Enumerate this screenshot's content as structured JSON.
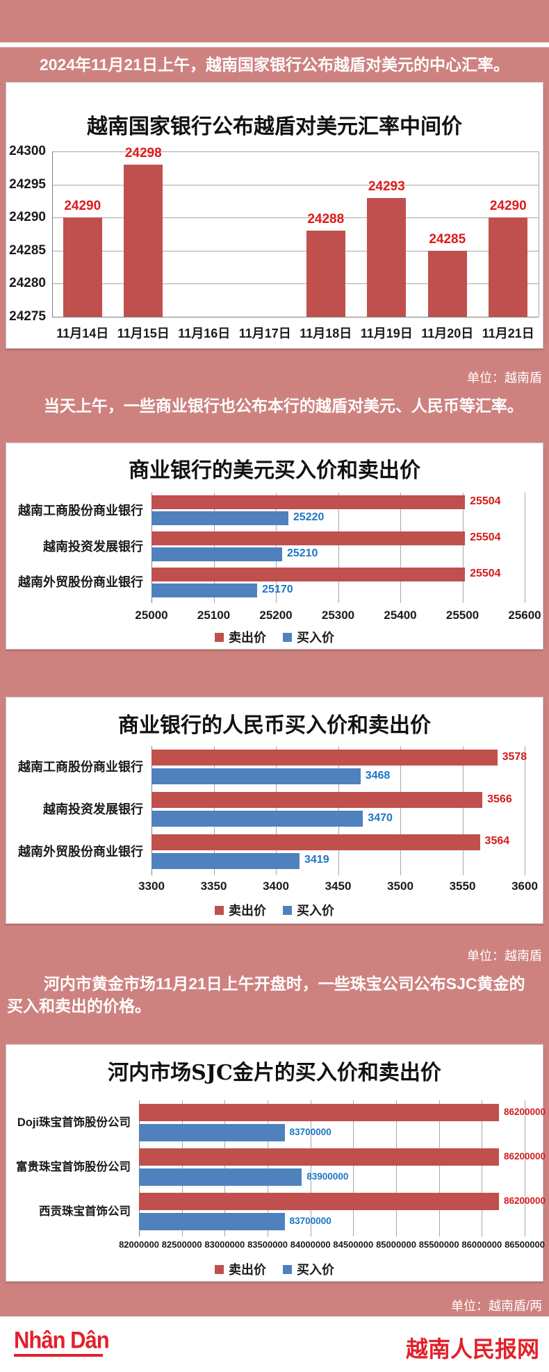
{
  "page": {
    "background_color": "#ce827f",
    "accent_red": "#e3202a",
    "intro_paragraph_1": "2024年11月21日上午，越南国家银行公布越盾对美元的中心汇率。",
    "intro_paragraph_2": "当天上午，一些商业银行也公布本行的越盾对美元、人民币等汇率。",
    "intro_paragraph_3": "河内市黄金市场11月21日上午开盘时，一些珠宝公司公布SJC黄金的买入和卖出的价格。",
    "unit_note_1": "单位：越南盾",
    "unit_note_2": "单位：越南盾",
    "unit_note_3": "单位：越南盾/两",
    "footer": {
      "logo_text": "Nhân Dân",
      "site_name": "越南人民报网"
    }
  },
  "chart_data": [
    {
      "type": "bar",
      "title": "越南国家银行公布越盾对美元汇率中间价",
      "categories": [
        "11月14日",
        "11月15日",
        "11月16日",
        "11月17日",
        "11月18日",
        "11月19日",
        "11月20日",
        "11月21日"
      ],
      "values": [
        24290,
        24298,
        null,
        null,
        24288,
        24293,
        24285,
        24290
      ],
      "ylim": [
        24275,
        24300
      ],
      "yticks": [
        24275,
        24280,
        24285,
        24290,
        24295,
        24300
      ],
      "bar_color": "#c0504d",
      "value_label_color": "#e01a1a",
      "grid": true,
      "legend_position": "none"
    },
    {
      "type": "bar-horizontal",
      "title": "商业银行的美元买入价和卖出价",
      "categories": [
        "越南工商股份商业银行",
        "越南投资发展银行",
        "越南外贸股份商业银行"
      ],
      "series": [
        {
          "name": "卖出价",
          "color": "#c0504d",
          "label_color": "#d31b1b",
          "values": [
            25504,
            25504,
            25504
          ]
        },
        {
          "name": "买入价",
          "color": "#4f81bd",
          "label_color": "#1b75c8",
          "values": [
            25220,
            25210,
            25170
          ]
        }
      ],
      "xlim": [
        25000,
        25600
      ],
      "xticks": [
        25000,
        25100,
        25200,
        25300,
        25400,
        25500,
        25600
      ],
      "grid": true,
      "legend_position": "bottom"
    },
    {
      "type": "bar-horizontal",
      "title": "商业银行的人民币买入价和卖出价",
      "categories": [
        "越南工商股份商业银行",
        "越南投资发展银行",
        "越南外贸股份商业银行"
      ],
      "series": [
        {
          "name": "卖出价",
          "color": "#c0504d",
          "label_color": "#d31b1b",
          "values": [
            3578,
            3566,
            3564
          ]
        },
        {
          "name": "买入价",
          "color": "#4f81bd",
          "label_color": "#1b75c8",
          "values": [
            3468,
            3470,
            3419
          ]
        }
      ],
      "xlim": [
        3300,
        3600
      ],
      "xticks": [
        3300,
        3350,
        3400,
        3450,
        3500,
        3550,
        3600
      ],
      "grid": true,
      "legend_position": "bottom"
    },
    {
      "type": "bar-horizontal",
      "title": "河内市场SJC金片的买入价和卖出价",
      "categories": [
        "Doji珠宝首饰股份公司",
        "富贵珠宝首饰股份公司",
        "西贡珠宝首饰公司"
      ],
      "series": [
        {
          "name": "卖出价",
          "color": "#c0504d",
          "label_color": "#d31b1b",
          "values": [
            86200000,
            86200000,
            86200000
          ]
        },
        {
          "name": "买入价",
          "color": "#4f81bd",
          "label_color": "#1b75c8",
          "values": [
            83700000,
            83900000,
            83700000
          ]
        }
      ],
      "xlim": [
        82000000,
        86500000
      ],
      "xticks": [
        82000000,
        82500000,
        83000000,
        83500000,
        84000000,
        84500000,
        85000000,
        85500000,
        86000000,
        86500000
      ],
      "grid": true,
      "legend_position": "bottom"
    }
  ]
}
